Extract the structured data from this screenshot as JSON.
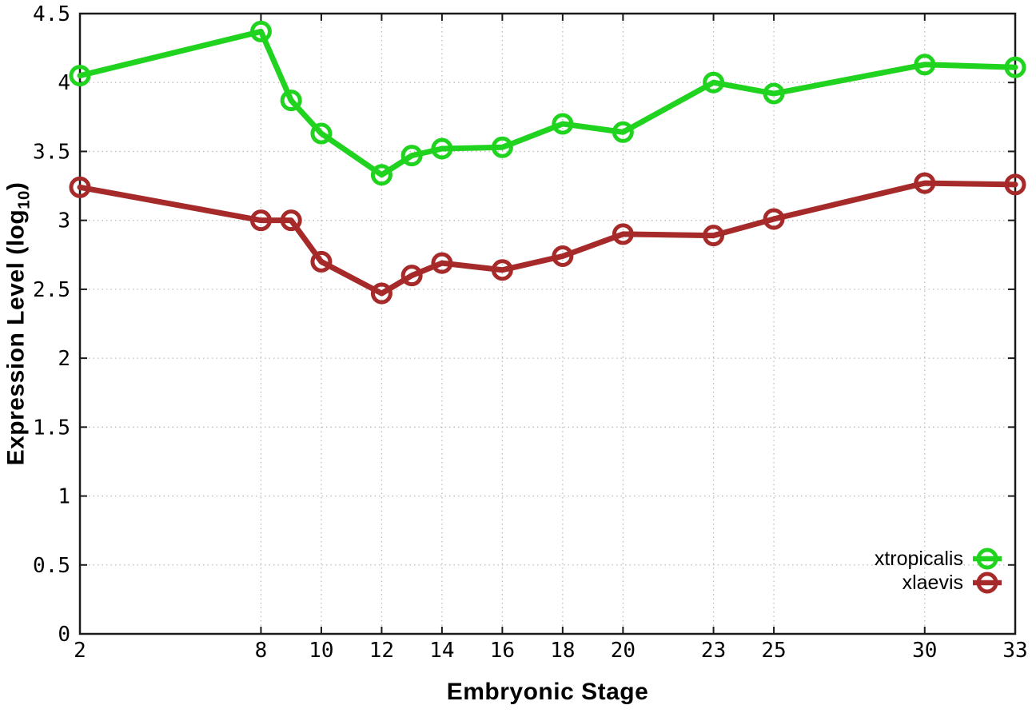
{
  "chart_data": {
    "type": "line",
    "title": "",
    "xlabel": "Embryonic Stage",
    "ylabel": "Expression Level (log10)",
    "ylabel_parts": {
      "main": "Expression Level (log",
      "sub": "10",
      "close": ")"
    },
    "xlim": [
      2,
      33
    ],
    "ylim": [
      0,
      4.5
    ],
    "x_ticks": [
      2,
      8,
      10,
      12,
      14,
      16,
      18,
      20,
      23,
      25,
      30,
      33
    ],
    "y_ticks": [
      0,
      0.5,
      1,
      1.5,
      2,
      2.5,
      3,
      3.5,
      4,
      4.5
    ],
    "grid": true,
    "legend_position": "bottom-right",
    "x": [
      2,
      8,
      9,
      10,
      12,
      13,
      14,
      16,
      18,
      20,
      23,
      25,
      30,
      33
    ],
    "series": [
      {
        "name": "xtropicalis",
        "color": "#1fd31f",
        "values": [
          4.05,
          4.37,
          3.87,
          3.63,
          3.33,
          3.47,
          3.52,
          3.53,
          3.7,
          3.64,
          4.0,
          3.92,
          4.13,
          4.11
        ]
      },
      {
        "name": "xlaevis",
        "color": "#a62a2a",
        "values": [
          3.24,
          3.0,
          3.0,
          2.7,
          2.47,
          2.6,
          2.69,
          2.64,
          2.74,
          2.9,
          2.89,
          3.01,
          3.27,
          3.26
        ]
      }
    ],
    "colors": {
      "grid": "#bdbdbd",
      "border": "#1a1a1a",
      "text": "#000000",
      "background": "#ffffff"
    }
  }
}
